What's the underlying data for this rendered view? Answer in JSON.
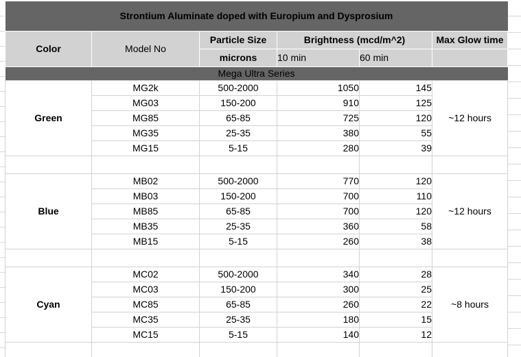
{
  "sheet": {
    "title": "Strontium Aluminate doped with Europium and Dysprosium",
    "series_label": "Mega Ultra Series",
    "columns": {
      "color": "Color",
      "model": "Model No",
      "particle_line1": "Particle Size",
      "particle_line2": "microns",
      "brightness": "Brightness (mcd/m^2)",
      "brightness_10": "10 min",
      "brightness_60": "60 min",
      "glow": "Max Glow time"
    },
    "groups": [
      {
        "color": "Green",
        "glow": "~12 hours",
        "rows": [
          {
            "model": "MG2k",
            "particle": "500-2000",
            "b10": "1050",
            "b60": "145"
          },
          {
            "model": "MG03",
            "particle": "150-200",
            "b10": "910",
            "b60": "125"
          },
          {
            "model": "MG85",
            "particle": "65-85",
            "b10": "725",
            "b60": "120"
          },
          {
            "model": "MG35",
            "particle": "25-35",
            "b10": "380",
            "b60": "55"
          },
          {
            "model": "MG15",
            "particle": "5-15",
            "b10": "280",
            "b60": "39"
          }
        ]
      },
      {
        "color": "Blue",
        "glow": "~12 hours",
        "rows": [
          {
            "model": "MB02",
            "particle": "500-2000",
            "b10": "770",
            "b60": "120"
          },
          {
            "model": "MB03",
            "particle": "150-200",
            "b10": "700",
            "b60": "110"
          },
          {
            "model": "MB85",
            "particle": "65-85",
            "b10": "700",
            "b60": "120"
          },
          {
            "model": "MB35",
            "particle": "25-35",
            "b10": "360",
            "b60": "58"
          },
          {
            "model": "MB15",
            "particle": "5-15",
            "b10": "260",
            "b60": "38"
          }
        ]
      },
      {
        "color": "Cyan",
        "glow": "~8 hours",
        "rows": [
          {
            "model": "MC02",
            "particle": "500-2000",
            "b10": "340",
            "b60": "28"
          },
          {
            "model": "MC03",
            "particle": "150-200",
            "b10": "300",
            "b60": "25"
          },
          {
            "model": "MC85",
            "particle": "65-85",
            "b10": "260",
            "b60": "22"
          },
          {
            "model": "MC35",
            "particle": "25-35",
            "b10": "180",
            "b60": "15"
          },
          {
            "model": "MC15",
            "particle": "5-15",
            "b10": "140",
            "b60": "12"
          }
        ]
      }
    ],
    "colors": {
      "dark_bar": "#656565",
      "header_bg": "#d2d2d2",
      "gridline": "#d2d2d2",
      "title_text": "#ffffff",
      "body_text": "#000000"
    }
  }
}
